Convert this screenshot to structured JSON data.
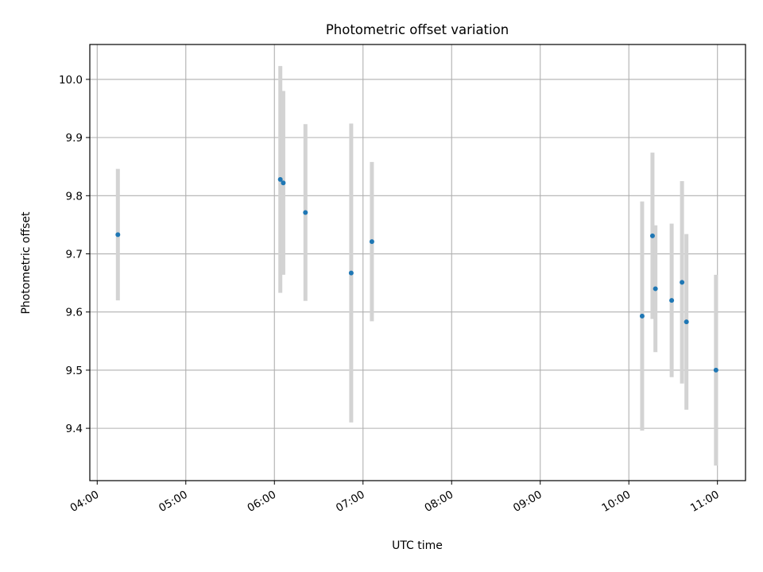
{
  "chart_data": {
    "type": "scatter",
    "title": "Photometric offset variation",
    "xlabel": "UTC time",
    "ylabel": "Photometric offset",
    "x_ticks": [
      "04:00",
      "05:00",
      "06:00",
      "07:00",
      "08:00",
      "09:00",
      "10:00",
      "11:00"
    ],
    "y_ticks": [
      "9.4",
      "9.5",
      "9.6",
      "9.7",
      "9.8",
      "9.9",
      "10.0"
    ],
    "xlim": [
      "03:55",
      "11:19"
    ],
    "ylim": [
      9.31,
      10.06
    ],
    "grid": true,
    "point_color": "#1f77b4",
    "errorbar_color": "#d3d3d3",
    "points": [
      {
        "x": "04:14",
        "y": 9.733,
        "err": 0.113
      },
      {
        "x": "06:04",
        "y": 9.828,
        "err": 0.195
      },
      {
        "x": "06:06",
        "y": 9.822,
        "err": 0.158
      },
      {
        "x": "06:21",
        "y": 9.771,
        "err": 0.152
      },
      {
        "x": "06:52",
        "y": 9.667,
        "err": 0.257
      },
      {
        "x": "07:06",
        "y": 9.721,
        "err": 0.137
      },
      {
        "x": "10:09",
        "y": 9.593,
        "err": 0.197
      },
      {
        "x": "10:16",
        "y": 9.731,
        "err": 0.143
      },
      {
        "x": "10:18",
        "y": 9.64,
        "err": 0.109
      },
      {
        "x": "10:29",
        "y": 9.62,
        "err": 0.132
      },
      {
        "x": "10:36",
        "y": 9.651,
        "err": 0.174
      },
      {
        "x": "10:39",
        "y": 9.583,
        "err": 0.151
      },
      {
        "x": "10:59",
        "y": 9.5,
        "err": 0.164
      }
    ]
  }
}
